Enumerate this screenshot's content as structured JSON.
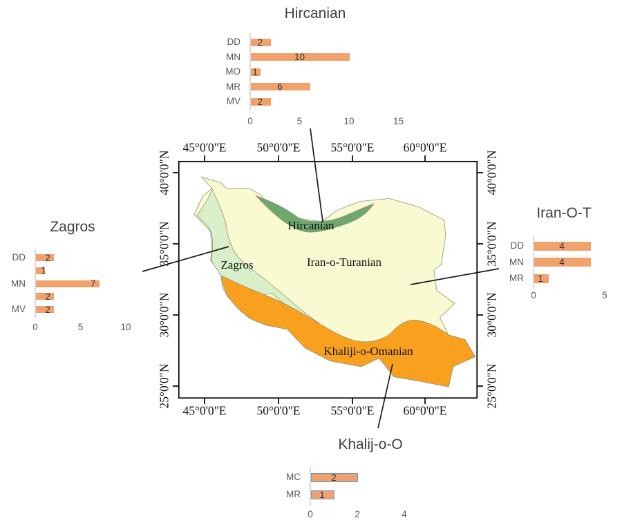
{
  "figure": {
    "background": "#FFFFFF",
    "description": "Map of Iran phytogeographic regions with four horizontal bar charts"
  },
  "map": {
    "frame_color": "#000000",
    "x_axis_labels": [
      "45°0'0\"E",
      "50°0'0\"E",
      "55°0'0\"E",
      "60°0'0\"E"
    ],
    "y_axis_labels": [
      "40°0'0\"N",
      "35°0'0\"N",
      "30°0'0\"N",
      "25°0'0\"N"
    ],
    "regions": [
      {
        "name": "Iran-o-Turanian",
        "color": "#FAFAD2"
      },
      {
        "name": "Zagros",
        "color": "#D9EFC9"
      },
      {
        "name": "Khaliji-o-Omanian",
        "color": "#F9A11F"
      },
      {
        "name": "Hircanian",
        "color": "#6EA86E"
      }
    ],
    "border_color": "#8F8F75"
  },
  "chart_data": [
    {
      "type": "bar",
      "orientation": "horizontal",
      "title": "Hircanian",
      "categories": [
        "DD",
        "MN",
        "MO",
        "MR",
        "MV"
      ],
      "values": [
        2,
        10,
        1,
        6,
        2
      ],
      "x_ticks": [
        0,
        5,
        10,
        15
      ],
      "xlim": [
        0,
        15
      ],
      "bar_color": "#F1A16C",
      "value_labels": true,
      "legend": false,
      "grid": false
    },
    {
      "type": "bar",
      "orientation": "horizontal",
      "title": "Zagros",
      "categories": [
        "DD",
        "",
        "MN",
        "",
        "MV"
      ],
      "values": [
        2,
        1,
        7,
        2,
        2
      ],
      "x_ticks": [
        0,
        5,
        10
      ],
      "xlim": [
        0,
        10
      ],
      "bar_color": "#F1A16C",
      "value_labels": true,
      "legend": false,
      "grid": false
    },
    {
      "type": "bar",
      "orientation": "horizontal",
      "title": "Iran-O-T",
      "categories": [
        "DD",
        "MN",
        "MR"
      ],
      "values": [
        4,
        4,
        1
      ],
      "x_ticks": [
        0,
        5
      ],
      "xlim": [
        0,
        5
      ],
      "bar_color": "#F1A16C",
      "value_labels": true,
      "legend": false,
      "grid": false
    },
    {
      "type": "bar",
      "orientation": "horizontal",
      "title": "Khalij-o-O",
      "categories": [
        "MC",
        "MR"
      ],
      "values": [
        2,
        1
      ],
      "x_ticks": [
        0,
        2,
        4
      ],
      "xlim": [
        0,
        4
      ],
      "bar_color": "#F1A16C",
      "bar_border_color": "#5B9BD5",
      "value_labels": true,
      "legend": false,
      "grid": false
    }
  ]
}
